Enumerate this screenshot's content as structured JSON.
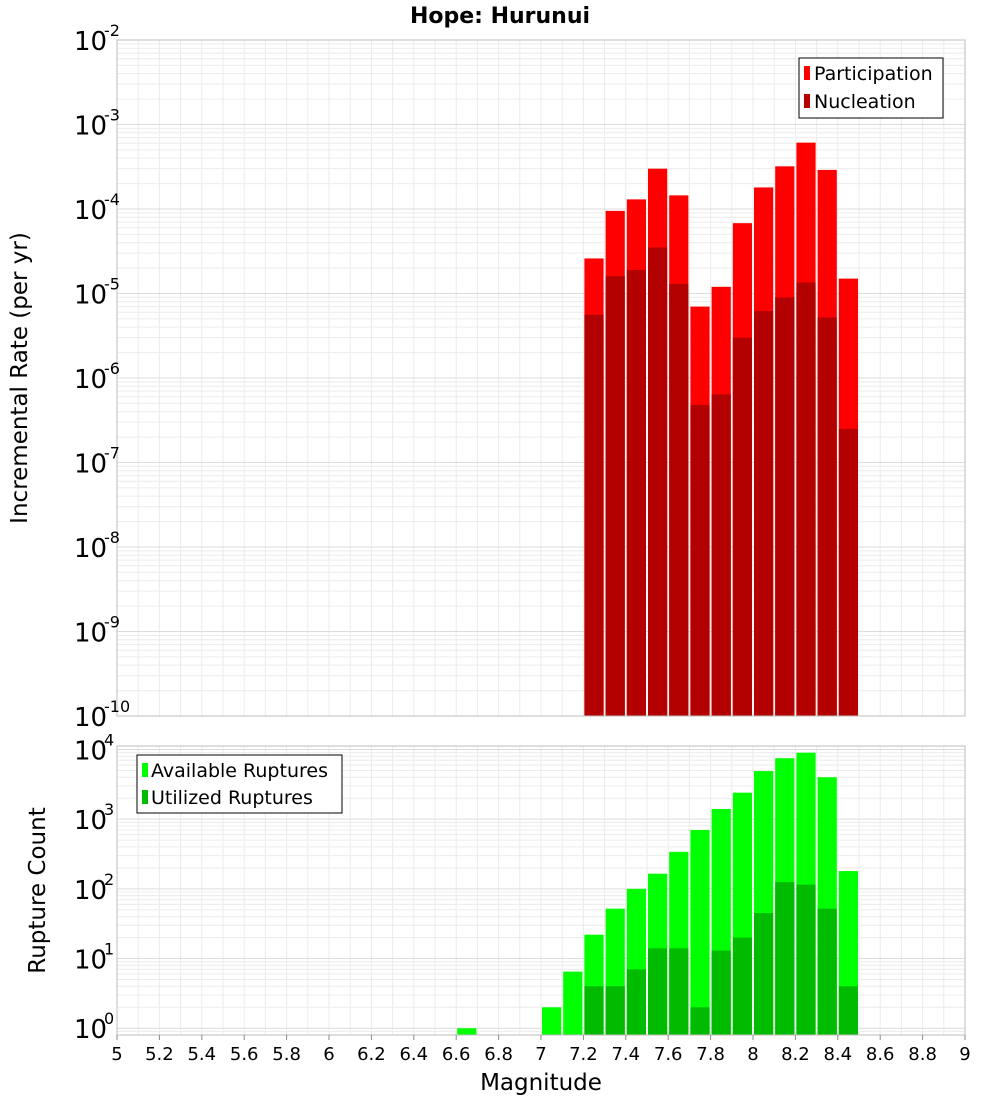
{
  "chart_data": [
    {
      "type": "bar",
      "title": "Hope: Hurunui",
      "ylabel": "Incremental Rate (per yr)",
      "xlabel": "",
      "yscale": "log",
      "ylim_exponents": [
        -10,
        -2
      ],
      "xlim": [
        5,
        9
      ],
      "bin_width": 0.1,
      "grid": true,
      "legend": "top-right",
      "x": [
        7.25,
        7.35,
        7.45,
        7.55,
        7.65,
        7.75,
        7.85,
        7.95,
        8.05,
        8.15,
        8.25,
        8.35,
        8.45
      ],
      "series": [
        {
          "name": "Participation",
          "color": "#ff0000",
          "values": [
            2.6e-05,
            9.5e-05,
            0.00013,
            0.0003,
            0.000145,
            7e-06,
            1.2e-05,
            6.8e-05,
            0.00018,
            0.00032,
            0.00061,
            0.00029,
            1.5e-05
          ]
        },
        {
          "name": "Nucleation",
          "color": "#b30000",
          "values": [
            5.6e-06,
            1.6e-05,
            1.9e-05,
            3.5e-05,
            1.3e-05,
            4.8e-07,
            6.4e-07,
            3e-06,
            6.2e-06,
            9e-06,
            1.35e-05,
            5.2e-06,
            2.5e-07
          ]
        }
      ]
    },
    {
      "type": "bar",
      "title": "",
      "ylabel": "Rupture Count",
      "xlabel": "Magnitude",
      "yscale": "log",
      "ylim_exponents": [
        0,
        4
      ],
      "ymin": 0.8,
      "xlim": [
        5,
        9
      ],
      "bin_width": 0.1,
      "grid": true,
      "legend": "top-left",
      "x_ticks": [
        "5",
        "5.2",
        "5.4",
        "5.6",
        "5.8",
        "6",
        "6.2",
        "6.4",
        "6.6",
        "6.8",
        "7",
        "7.2",
        "7.4",
        "7.6",
        "7.8",
        "8",
        "8.2",
        "8.4",
        "8.6",
        "8.8",
        "9"
      ],
      "x": [
        6.65,
        7.05,
        7.15,
        7.25,
        7.35,
        7.45,
        7.55,
        7.65,
        7.75,
        7.85,
        7.95,
        8.05,
        8.15,
        8.25,
        8.35,
        8.45
      ],
      "series": [
        {
          "name": "Available Ruptures",
          "color": "#00ff00",
          "values": [
            1,
            2,
            6.5,
            22,
            52,
            100,
            165,
            340,
            700,
            1400,
            2400,
            4900,
            7500,
            9000,
            4000,
            180
          ]
        },
        {
          "name": "Utilized Ruptures",
          "color": "#00bb00",
          "values": [
            0,
            0,
            0,
            4,
            4,
            7,
            14,
            14,
            2,
            13,
            20,
            45,
            125,
            115,
            52,
            4
          ]
        }
      ]
    }
  ]
}
